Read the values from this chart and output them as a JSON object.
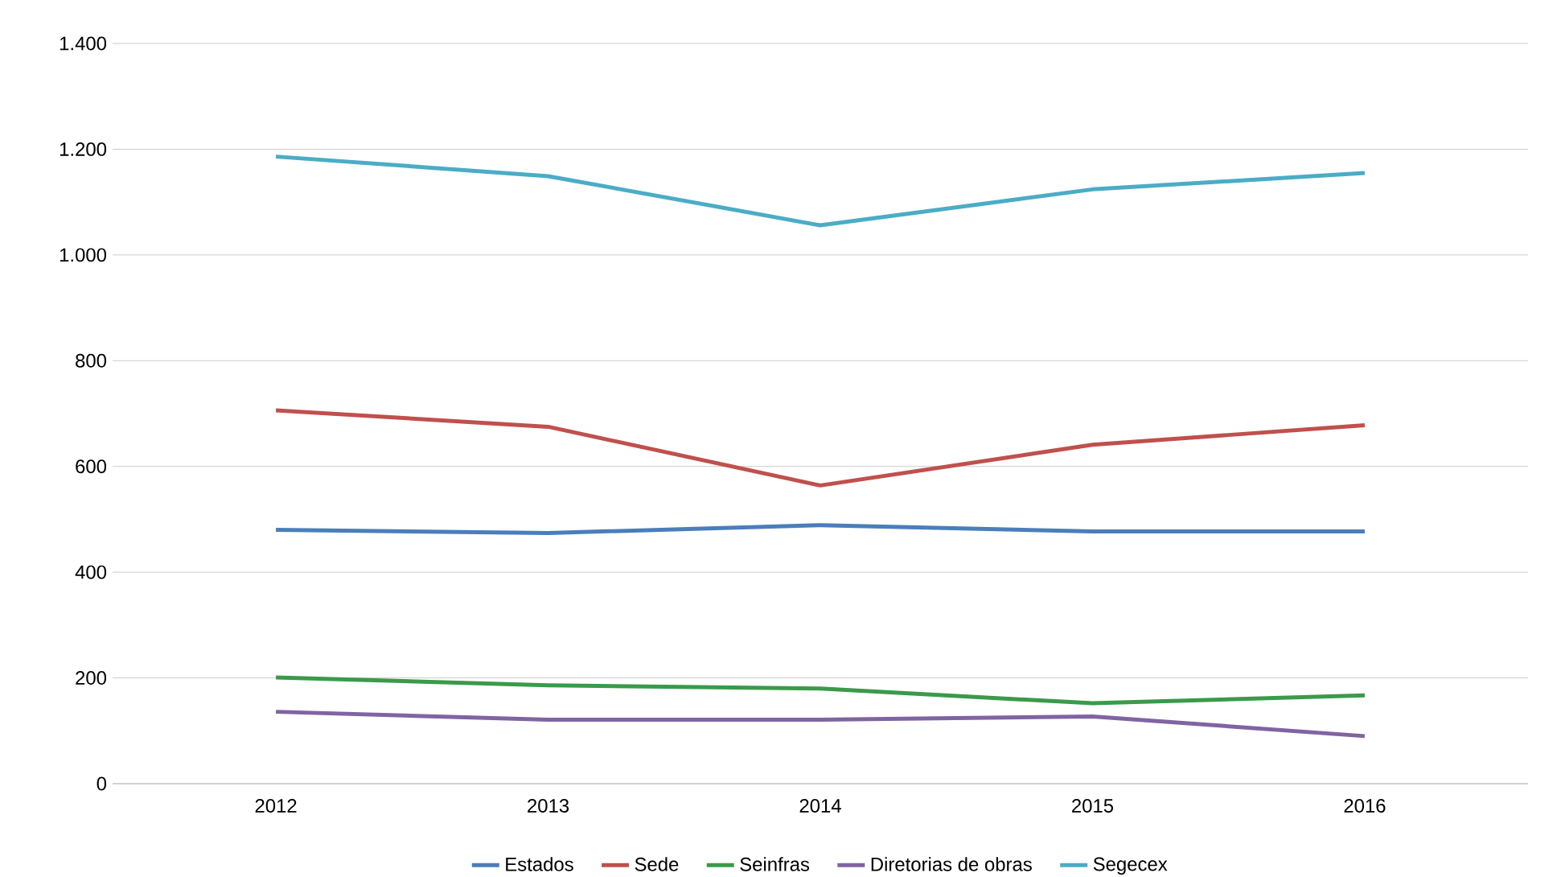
{
  "chart_data": {
    "type": "line",
    "categories": [
      "2012",
      "2013",
      "2014",
      "2015",
      "2016"
    ],
    "series": [
      {
        "name": "Estados",
        "color": "#4a7ebb",
        "values": [
          480,
          474,
          489,
          477,
          477
        ]
      },
      {
        "name": "Sede",
        "color": "#c0504d",
        "values": [
          706,
          675,
          564,
          641,
          678
        ]
      },
      {
        "name": "Seinfras",
        "color": "#3a9a4a",
        "values": [
          201,
          186,
          180,
          152,
          167
        ]
      },
      {
        "name": "Diretorias de obras",
        "color": "#8064a2",
        "values": [
          136,
          121,
          121,
          127,
          90
        ]
      },
      {
        "name": "Segecex",
        "color": "#4bacc6",
        "values": [
          1186,
          1149,
          1056,
          1124,
          1155
        ]
      }
    ],
    "ylim": [
      0,
      1400
    ],
    "yticks": [
      0,
      200,
      400,
      600,
      800,
      {
        "value": 1000,
        "label": "1.000"
      },
      {
        "value": 1200,
        "label": "1.200"
      },
      {
        "value": 1400,
        "label": "1.400"
      }
    ],
    "grid": "y",
    "legend": "bottom",
    "marker": "none",
    "line_style": "solid"
  }
}
